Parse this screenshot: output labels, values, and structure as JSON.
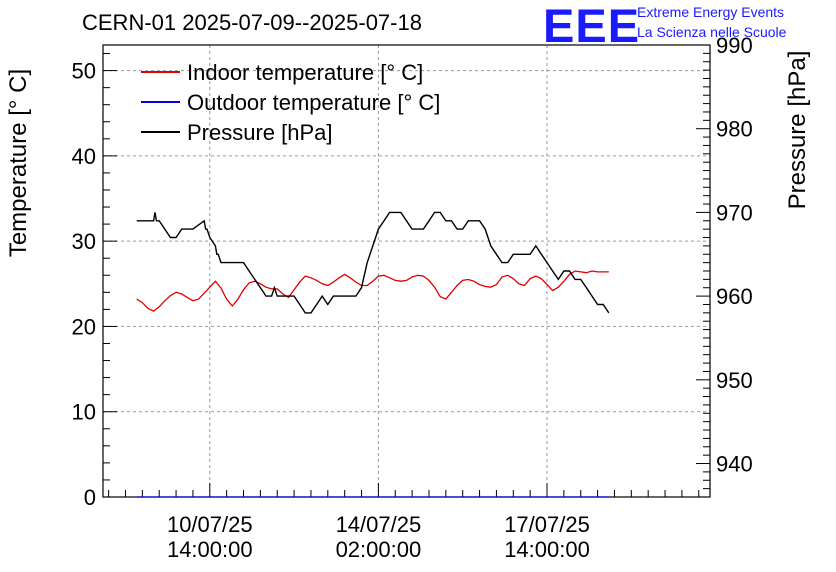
{
  "title": "CERN-01 2025-07-09--2025-07-18",
  "branding": {
    "logo": "EEE",
    "line1": "Extreme Energy Events",
    "line2": "La Scienza nelle Scuole"
  },
  "chart_data": {
    "type": "line",
    "title": "CERN-01 2025-07-09--2025-07-18",
    "ylabel": "Temperature [° C]",
    "y2label": "Pressure [hPa]",
    "ylim": [
      0,
      53
    ],
    "y2lim": [
      936,
      990
    ],
    "xlim_hours": [
      0,
      216
    ],
    "yticks": [
      0,
      10,
      20,
      30,
      40,
      50
    ],
    "y2ticks": [
      940,
      950,
      960,
      970,
      980,
      990
    ],
    "xticks": [
      {
        "hours": 38,
        "line1": "10/07/25",
        "line2": "14:00:00"
      },
      {
        "hours": 98,
        "line1": "14/07/25",
        "line2": "02:00:00"
      },
      {
        "hours": 158,
        "line1": "17/07/25",
        "line2": "14:00:00"
      }
    ],
    "grid": true,
    "legend_position": "top-left",
    "colors": {
      "indoor": "#e00000",
      "outdoor": "#0000e0",
      "pressure": "#000000"
    },
    "series": [
      {
        "name": "Indoor temperature [° C]",
        "axis": "left",
        "x": [
          12,
          14,
          16,
          18,
          20,
          22,
          24,
          26,
          28,
          30,
          32,
          34,
          36,
          38,
          40,
          42,
          44,
          46,
          48,
          50,
          52,
          54,
          56,
          58,
          60,
          62,
          64,
          66,
          68,
          70,
          72,
          74,
          76,
          78,
          80,
          82,
          84,
          86,
          88,
          90,
          92,
          94,
          96,
          98,
          100,
          102,
          104,
          106,
          108,
          110,
          112,
          114,
          116,
          118,
          120,
          122,
          124,
          126,
          128,
          130,
          132,
          134,
          136,
          138,
          140,
          142,
          144,
          146,
          148,
          150,
          152,
          154,
          156,
          158,
          160,
          162,
          164,
          166,
          168,
          170,
          172,
          174,
          176,
          178,
          180
        ],
        "values": [
          23.2,
          22.8,
          22.1,
          21.8,
          22.3,
          23.0,
          23.6,
          24.0,
          23.8,
          23.4,
          23.0,
          23.2,
          23.9,
          24.6,
          25.3,
          24.5,
          23.2,
          22.4,
          23.2,
          24.3,
          25.1,
          25.3,
          25.0,
          24.6,
          24.4,
          24.4,
          23.8,
          23.4,
          24.3,
          25.2,
          25.9,
          25.7,
          25.4,
          25.0,
          24.8,
          25.2,
          25.7,
          26.1,
          25.7,
          25.2,
          24.8,
          24.8,
          25.3,
          25.9,
          26.0,
          25.7,
          25.4,
          25.3,
          25.4,
          25.8,
          26.0,
          25.9,
          25.4,
          24.6,
          23.5,
          23.2,
          24.0,
          24.8,
          25.4,
          25.5,
          25.3,
          24.9,
          24.7,
          24.6,
          24.9,
          25.8,
          26.0,
          25.6,
          25.0,
          24.8,
          25.6,
          25.9,
          25.6,
          24.9,
          24.2,
          24.6,
          25.3,
          26.1,
          26.5,
          26.4,
          26.3,
          26.5,
          26.4,
          26.4,
          26.4
        ],
        "color": "#e00000"
      },
      {
        "name": "Outdoor temperature [° C]",
        "axis": "left",
        "x": [
          12,
          180
        ],
        "values": [
          0,
          0
        ],
        "color": "#0000e0"
      },
      {
        "name": "Pressure [hPa]",
        "axis": "right",
        "x": [
          12,
          18,
          18.5,
          19,
          20,
          22,
          24,
          26,
          28,
          32,
          36,
          36.5,
          37,
          38,
          40,
          40.5,
          41,
          42,
          46,
          50,
          52,
          54,
          56,
          58,
          60,
          61,
          62,
          64,
          66,
          68,
          70,
          72,
          74,
          76,
          78,
          80,
          82,
          84,
          86,
          88,
          90,
          92,
          94,
          96,
          98,
          100,
          102,
          104,
          106,
          108,
          110,
          112,
          114,
          116,
          118,
          120,
          122,
          124,
          126,
          128,
          130,
          134,
          136,
          138,
          140,
          142,
          144,
          146,
          148,
          150,
          152,
          154,
          156,
          158,
          160,
          162,
          164,
          166,
          168,
          170,
          172,
          174,
          176,
          178,
          180
        ],
        "values": [
          969,
          969,
          970,
          969,
          969,
          968,
          967,
          967,
          968,
          968,
          969,
          968,
          968,
          967,
          966,
          965,
          965,
          964,
          964,
          964,
          963,
          962,
          961,
          960,
          960,
          961,
          960,
          960,
          960,
          960,
          959,
          958,
          958,
          959,
          960,
          959,
          960,
          960,
          960,
          960,
          960,
          961,
          964,
          966,
          968,
          969,
          970,
          970,
          970,
          969,
          968,
          968,
          968,
          969,
          970,
          970,
          969,
          969,
          968,
          968,
          969,
          969,
          968,
          966,
          965,
          964,
          964,
          965,
          965,
          965,
          965,
          966,
          965,
          964,
          963,
          962,
          963,
          963,
          962,
          962,
          961,
          960,
          959,
          959,
          958
        ],
        "color": "#000000"
      }
    ]
  }
}
